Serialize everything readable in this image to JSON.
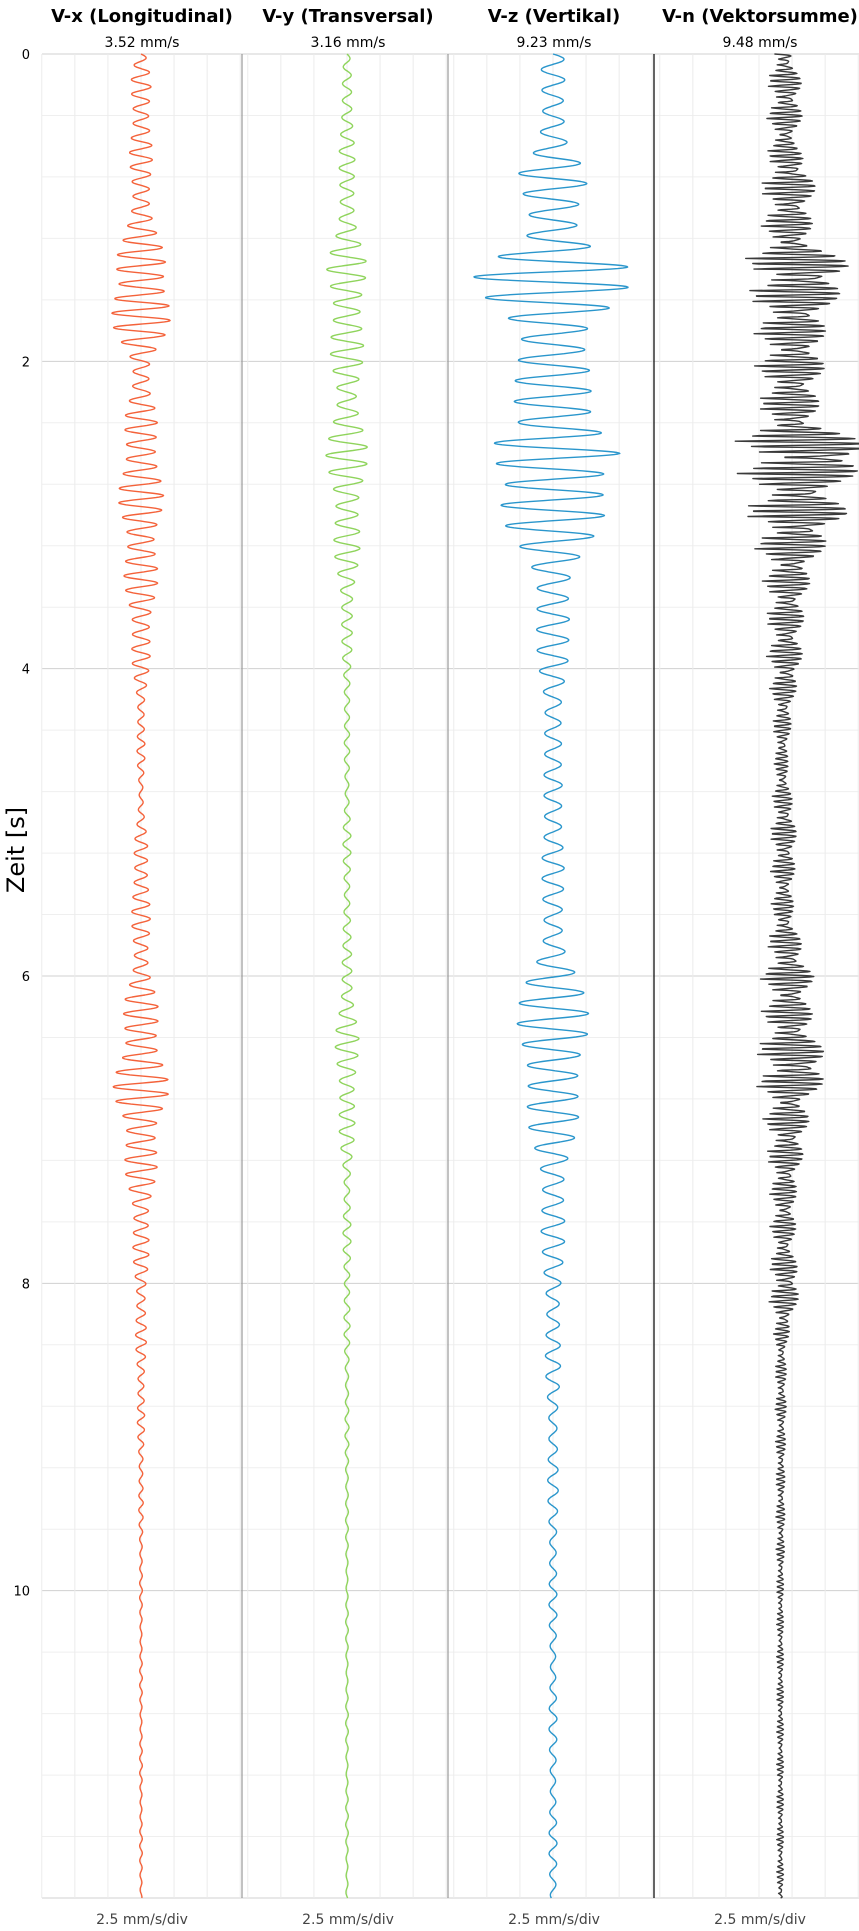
{
  "chart_data": {
    "type": "line",
    "ylabel": "Zeit [s]",
    "y_axis": {
      "range": [
        0,
        12.0
      ],
      "ticks": [
        0,
        2,
        4,
        6,
        8,
        10
      ],
      "inverted": true,
      "grid": true
    },
    "panels": [
      {
        "title": "V-x (Longitudinal)",
        "peak_label": "3.52 mm/s",
        "scale_label": "2.5 mm/s/div",
        "color": "#f4623a",
        "units_per_div": 2.5,
        "t": [
          0.0,
          0.2,
          0.4,
          0.6,
          0.8,
          1.0,
          1.2,
          1.4,
          1.6,
          1.8,
          2.0,
          2.2,
          2.4,
          2.6,
          2.8,
          3.0,
          3.2,
          3.4,
          3.6,
          3.8,
          4.0,
          4.2,
          4.4,
          4.6,
          4.8,
          5.0,
          5.2,
          5.4,
          5.6,
          5.8,
          6.0,
          6.2,
          6.4,
          6.6,
          6.8,
          7.0,
          7.2,
          7.4,
          7.6,
          7.8,
          8.0,
          8.4,
          8.8,
          9.2,
          9.6,
          10.0,
          10.4,
          10.8,
          11.2,
          11.6,
          12.0
        ],
        "amp": [
          0.4,
          0.8,
          0.9,
          0.9,
          0.8,
          1.0,
          1.3,
          2.4,
          2.8,
          2.0,
          1.0,
          0.8,
          1.3,
          1.7,
          1.7,
          1.7,
          1.5,
          1.3,
          1.1,
          0.9,
          0.6,
          0.4,
          0.3,
          0.3,
          0.2,
          0.3,
          0.6,
          0.8,
          0.7,
          0.7,
          0.9,
          1.3,
          1.7,
          2.1,
          2.1,
          1.7,
          1.3,
          1.0,
          0.8,
          0.6,
          0.5,
          0.4,
          0.3,
          0.2,
          0.15,
          0.1,
          0.1,
          0.1,
          0.1,
          0.1,
          0.1
        ],
        "cycle_s": 0.095
      },
      {
        "title": "V-y (Transversal)",
        "peak_label": "3.16 mm/s",
        "scale_label": "2.5 mm/s/div",
        "color": "#8fd45c",
        "units_per_div": 2.5,
        "t": [
          0.0,
          0.2,
          0.4,
          0.6,
          0.8,
          1.0,
          1.2,
          1.4,
          1.6,
          1.8,
          2.0,
          2.2,
          2.4,
          2.6,
          2.8,
          3.0,
          3.2,
          3.4,
          3.6,
          3.8,
          4.0,
          4.2,
          4.4,
          4.6,
          4.8,
          5.0,
          5.2,
          5.4,
          5.6,
          5.8,
          6.0,
          6.2,
          6.4,
          6.6,
          6.8,
          7.0,
          7.2,
          7.4,
          7.6,
          7.8,
          8.0,
          8.4,
          8.8,
          9.2,
          9.6,
          10.0,
          10.4,
          10.8,
          11.2,
          11.6,
          12.0
        ],
        "amp": [
          0.2,
          0.4,
          0.6,
          0.6,
          0.6,
          0.8,
          1.0,
          1.6,
          1.6,
          1.4,
          1.2,
          1.0,
          1.4,
          1.6,
          1.5,
          1.2,
          1.0,
          0.8,
          0.6,
          0.4,
          0.3,
          0.3,
          0.2,
          0.2,
          0.2,
          0.3,
          0.3,
          0.3,
          0.3,
          0.3,
          0.5,
          0.7,
          0.9,
          0.9,
          0.8,
          0.6,
          0.4,
          0.3,
          0.3,
          0.3,
          0.3,
          0.2,
          0.15,
          0.15,
          0.1,
          0.1,
          0.1,
          0.1,
          0.1,
          0.1,
          0.1
        ],
        "cycle_s": 0.11
      },
      {
        "title": "V-z (Vertikal)",
        "peak_label": "9.23 mm/s",
        "scale_label": "2.5 mm/s/div",
        "color": "#2a96cc",
        "units_per_div": 2.5,
        "t": [
          0.0,
          0.2,
          0.4,
          0.6,
          0.8,
          1.0,
          1.2,
          1.4,
          1.6,
          1.8,
          2.0,
          2.2,
          2.4,
          2.6,
          2.8,
          3.0,
          3.2,
          3.4,
          3.6,
          3.8,
          4.0,
          4.2,
          4.4,
          4.6,
          4.8,
          5.0,
          5.2,
          5.4,
          5.6,
          5.8,
          6.0,
          6.2,
          6.4,
          6.6,
          6.8,
          7.0,
          7.2,
          7.4,
          7.6,
          7.8,
          8.0,
          8.4,
          8.8,
          9.2,
          9.6,
          10.0,
          10.4,
          10.8,
          11.2,
          11.6,
          12.0
        ],
        "amp": [
          0.8,
          1.2,
          1.2,
          1.2,
          2.8,
          2.6,
          3.0,
          6.4,
          5.2,
          3.6,
          3.8,
          3.0,
          2.8,
          7.5,
          5.0,
          4.0,
          2.8,
          2.0,
          1.6,
          1.2,
          1.2,
          1.0,
          0.8,
          0.6,
          0.8,
          1.0,
          1.0,
          0.8,
          0.8,
          1.2,
          2.2,
          2.6,
          3.2,
          3.0,
          2.2,
          1.8,
          1.4,
          1.2,
          1.0,
          0.8,
          0.8,
          0.6,
          0.5,
          0.4,
          0.4,
          0.3,
          0.3,
          0.3,
          0.3,
          0.3,
          0.3
        ],
        "cycle_s": 0.135
      },
      {
        "title": "V-n (Vektorsumme)",
        "peak_label": "9.48 mm/s",
        "scale_label": "2.5 mm/s/div",
        "color": "#3a3a3a",
        "units_per_div": 2.5,
        "t": [
          0.0,
          0.2,
          0.4,
          0.6,
          0.8,
          1.0,
          1.2,
          1.4,
          1.6,
          1.8,
          2.0,
          2.2,
          2.4,
          2.6,
          2.8,
          3.0,
          3.2,
          3.4,
          3.6,
          3.8,
          4.0,
          4.2,
          4.4,
          4.6,
          4.8,
          5.0,
          5.2,
          5.4,
          5.6,
          5.8,
          6.0,
          6.2,
          6.4,
          6.6,
          6.8,
          7.0,
          7.2,
          7.4,
          7.6,
          7.8,
          8.0,
          8.4,
          8.8,
          9.2,
          9.6,
          10.0,
          10.4,
          10.8,
          11.2,
          11.6,
          12.0
        ],
        "amp": [
          1.0,
          1.6,
          1.6,
          1.2,
          2.6,
          2.4,
          2.2,
          5.4,
          4.0,
          3.2,
          3.2,
          2.8,
          2.8,
          7.5,
          4.2,
          4.8,
          3.2,
          2.2,
          1.8,
          1.6,
          1.6,
          1.0,
          0.8,
          0.6,
          0.8,
          1.2,
          1.2,
          1.0,
          1.0,
          1.6,
          2.4,
          2.2,
          2.6,
          3.8,
          2.2,
          2.0,
          1.6,
          1.2,
          1.2,
          1.0,
          1.6,
          0.5,
          0.5,
          0.4,
          0.4,
          0.3,
          0.3,
          0.3,
          0.3,
          0.3,
          0.3
        ],
        "cycle_s": 0.07,
        "one_sided": true
      }
    ]
  }
}
